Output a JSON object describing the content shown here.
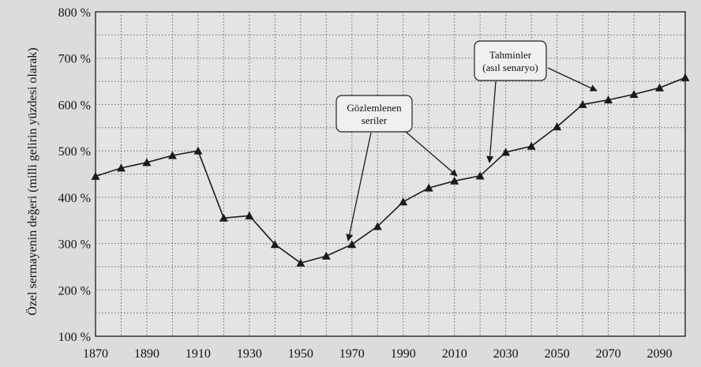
{
  "chart_data": {
    "type": "line",
    "title": "",
    "xlabel": "",
    "ylabel": "Özel sermayenin değeri (milli gelirin yüzdesi olarak)",
    "xlim": [
      1870,
      2100
    ],
    "ylim": [
      100,
      800
    ],
    "x_ticks": [
      1870,
      1890,
      1910,
      1930,
      1950,
      1970,
      1990,
      2010,
      2030,
      2050,
      2070,
      2090
    ],
    "x_tick_labels": [
      "1870",
      "1890",
      "1910",
      "1930",
      "1950",
      "1970",
      "1990",
      "2010",
      "2030",
      "2050",
      "2070",
      "2090"
    ],
    "y_ticks": [
      100,
      200,
      300,
      400,
      500,
      600,
      700,
      800
    ],
    "y_tick_labels": [
      "100 %",
      "200 %",
      "300 %",
      "400 %",
      "500 %",
      "600 %",
      "700 %",
      "800 %"
    ],
    "grid": true,
    "marker": "triangle",
    "series": [
      {
        "x": [
          1870,
          1880,
          1890,
          1900,
          1910,
          1920,
          1930,
          1940,
          1950,
          1960,
          1970,
          1980,
          1990,
          2000,
          2010,
          2020,
          2030,
          2040,
          2050,
          2060,
          2070,
          2080,
          2090,
          2100
        ],
        "y": [
          445,
          463,
          475,
          490,
          500,
          355,
          360,
          298,
          258,
          273,
          298,
          337,
          390,
          420,
          435,
          446,
          497,
          510,
          552,
          600,
          610,
          622,
          636,
          658
        ]
      }
    ],
    "annotations": [
      {
        "lines": [
          "Gözlemlenen",
          "seriler"
        ]
      },
      {
        "lines": [
          "Tahminler",
          "(asıl senaryo)"
        ]
      }
    ]
  }
}
